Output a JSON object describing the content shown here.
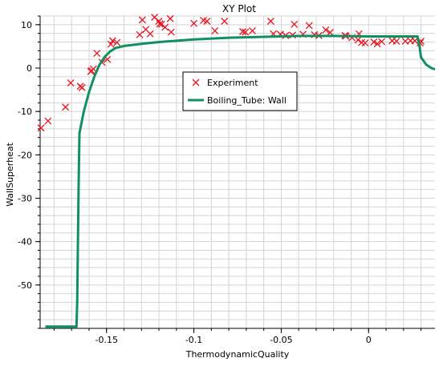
{
  "chart_data": {
    "type": "scatter",
    "title": "XY Plot",
    "xlabel": "ThermodynamicQuality",
    "ylabel": "WallSuperheat",
    "xlim": [
      -0.188,
      0.038
    ],
    "ylim": [
      -60,
      12
    ],
    "x_ticks": [
      -0.15,
      -0.1,
      -0.05,
      0
    ],
    "x_tick_labels": [
      "-0.15",
      "-0.1",
      "-0.05",
      "0"
    ],
    "y_ticks": [
      10,
      0,
      -10,
      -20,
      -30,
      -40,
      -50
    ],
    "y_tick_labels": [
      "10",
      "0",
      "-10",
      "-20",
      "-30",
      "-40",
      "-50"
    ],
    "grid": true,
    "legend_position": "center-right",
    "colors": {
      "experiment": "#e8141e",
      "simulation": "#109060",
      "grid": "#d4d4d4",
      "axis": "#000000"
    },
    "series": [
      {
        "name": "Experiment",
        "kind": "markers",
        "marker": "x",
        "color": "#e8141e",
        "points": [
          [
            -0.1875,
            -13.8
          ],
          [
            -0.1835,
            -12.2
          ],
          [
            -0.1735,
            -9.0
          ],
          [
            -0.1705,
            -3.4
          ],
          [
            -0.165,
            -4.2
          ],
          [
            -0.164,
            -4.5
          ],
          [
            -0.159,
            -0.8
          ],
          [
            -0.1575,
            -0.2
          ],
          [
            -0.1585,
            -0.6
          ],
          [
            -0.1555,
            3.4
          ],
          [
            -0.1525,
            1.3
          ],
          [
            -0.1495,
            2.0
          ],
          [
            -0.1475,
            5.5
          ],
          [
            -0.1465,
            6.3
          ],
          [
            -0.144,
            5.9
          ],
          [
            -0.131,
            7.7
          ],
          [
            -0.1295,
            11.1
          ],
          [
            -0.1275,
            8.9
          ],
          [
            -0.125,
            7.9
          ],
          [
            -0.1225,
            11.7
          ],
          [
            -0.12,
            10.8
          ],
          [
            -0.1195,
            10.2
          ],
          [
            -0.1185,
            10.1
          ],
          [
            -0.1165,
            9.4
          ],
          [
            -0.1135,
            11.4
          ],
          [
            -0.113,
            8.3
          ],
          [
            -0.1,
            10.3
          ],
          [
            -0.0945,
            11.0
          ],
          [
            -0.0925,
            10.8
          ],
          [
            -0.088,
            8.6
          ],
          [
            -0.0825,
            10.8
          ],
          [
            -0.072,
            8.4
          ],
          [
            -0.0705,
            8.3
          ],
          [
            -0.0665,
            8.6
          ],
          [
            -0.056,
            10.8
          ],
          [
            -0.0545,
            7.9
          ],
          [
            -0.0505,
            7.8
          ],
          [
            -0.0475,
            7.5
          ],
          [
            -0.0435,
            7.6
          ],
          [
            -0.0425,
            10.1
          ],
          [
            -0.0375,
            7.8
          ],
          [
            -0.034,
            9.8
          ],
          [
            -0.031,
            7.7
          ],
          [
            -0.0285,
            7.5
          ],
          [
            -0.0245,
            8.8
          ],
          [
            -0.022,
            8.2
          ],
          [
            -0.0135,
            7.5
          ],
          [
            -0.013,
            7.4
          ],
          [
            -0.0095,
            7.0
          ],
          [
            -0.006,
            6.5
          ],
          [
            -0.0055,
            7.9
          ],
          [
            -0.004,
            5.9
          ],
          [
            -0.002,
            5.8
          ],
          [
            0.003,
            6.0
          ],
          [
            0.005,
            5.6
          ],
          [
            0.0075,
            6.1
          ],
          [
            0.0135,
            6.3
          ],
          [
            0.016,
            6.2
          ],
          [
            0.021,
            6.2
          ],
          [
            0.024,
            6.3
          ],
          [
            0.0265,
            6.3
          ],
          [
            0.0295,
            5.8
          ],
          [
            0.03,
            6.2
          ]
        ]
      },
      {
        "name": "Boiling_Tube: Wall",
        "kind": "line",
        "color": "#109060",
        "points": [
          [
            -0.185,
            -59.6
          ],
          [
            -0.175,
            -59.6
          ],
          [
            -0.1672,
            -59.6
          ],
          [
            -0.1668,
            -54.0
          ],
          [
            -0.166,
            -28.0
          ],
          [
            -0.1655,
            -15.0
          ],
          [
            -0.163,
            -10.0
          ],
          [
            -0.16,
            -5.5
          ],
          [
            -0.157,
            -2.0
          ],
          [
            -0.154,
            0.8
          ],
          [
            -0.151,
            2.6
          ],
          [
            -0.148,
            3.8
          ],
          [
            -0.145,
            4.6
          ],
          [
            -0.14,
            5.1
          ],
          [
            -0.13,
            5.6
          ],
          [
            -0.12,
            6.0
          ],
          [
            -0.1,
            6.6
          ],
          [
            -0.08,
            7.0
          ],
          [
            -0.06,
            7.2
          ],
          [
            -0.04,
            7.4
          ],
          [
            -0.02,
            7.4
          ],
          [
            0.0,
            7.3
          ],
          [
            0.02,
            7.3
          ],
          [
            0.028,
            7.3
          ],
          [
            0.029,
            5.5
          ],
          [
            0.03,
            2.5
          ],
          [
            0.033,
            0.8
          ],
          [
            0.036,
            0.0
          ],
          [
            0.038,
            -0.3
          ]
        ]
      }
    ]
  }
}
